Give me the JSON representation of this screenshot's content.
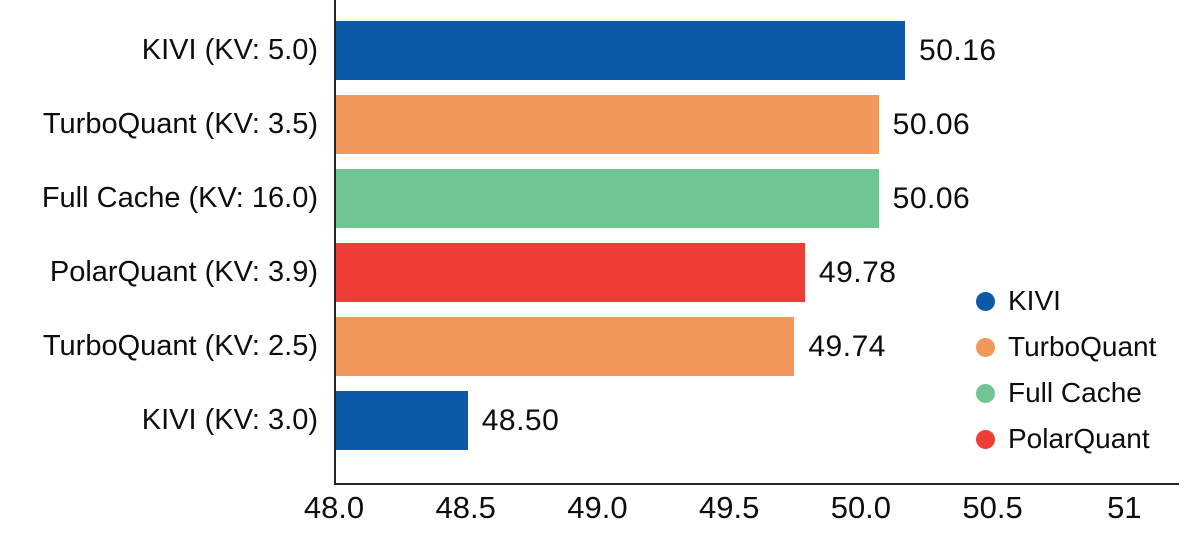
{
  "chart_data": {
    "type": "bar",
    "orientation": "horizontal",
    "title": "",
    "xlabel": "",
    "ylabel": "",
    "grid": false,
    "xlim": [
      48.0,
      51.2
    ],
    "categories": [
      "KIVI (KV: 5.0)",
      "TurboQuant (KV: 3.5)",
      "Full Cache (KV: 16.0)",
      "PolarQuant (KV: 3.9)",
      "TurboQuant (KV: 2.5)",
      "KIVI (KV: 3.0)"
    ],
    "values": [
      50.16,
      50.06,
      50.06,
      49.78,
      49.74,
      48.5
    ],
    "value_labels": [
      "50.16",
      "50.06",
      "50.06",
      "49.78",
      "49.74",
      "48.50"
    ],
    "bar_series": [
      "KIVI",
      "TurboQuant",
      "Full Cache",
      "PolarQuant",
      "TurboQuant",
      "KIVI"
    ],
    "series_colors": {
      "KIVI": "#0b59a7",
      "TurboQuant": "#f2985b",
      "Full Cache": "#6fc694",
      "PolarQuant": "#ee3d36"
    },
    "x_ticks": [
      {
        "value": 48.0,
        "label": "48.0"
      },
      {
        "value": 48.5,
        "label": "48.5"
      },
      {
        "value": 49.0,
        "label": "49.0"
      },
      {
        "value": 49.5,
        "label": "49.5"
      },
      {
        "value": 50.0,
        "label": "50.0"
      },
      {
        "value": 50.5,
        "label": "50.5"
      },
      {
        "value": 51.0,
        "label": "51"
      }
    ],
    "legend": {
      "position": "right-bottom",
      "entries": [
        {
          "label": "KIVI",
          "color": "#0b59a7"
        },
        {
          "label": "TurboQuant",
          "color": "#f2985b"
        },
        {
          "label": "Full Cache",
          "color": "#6fc694"
        },
        {
          "label": "PolarQuant",
          "color": "#ee3d36"
        }
      ]
    }
  }
}
